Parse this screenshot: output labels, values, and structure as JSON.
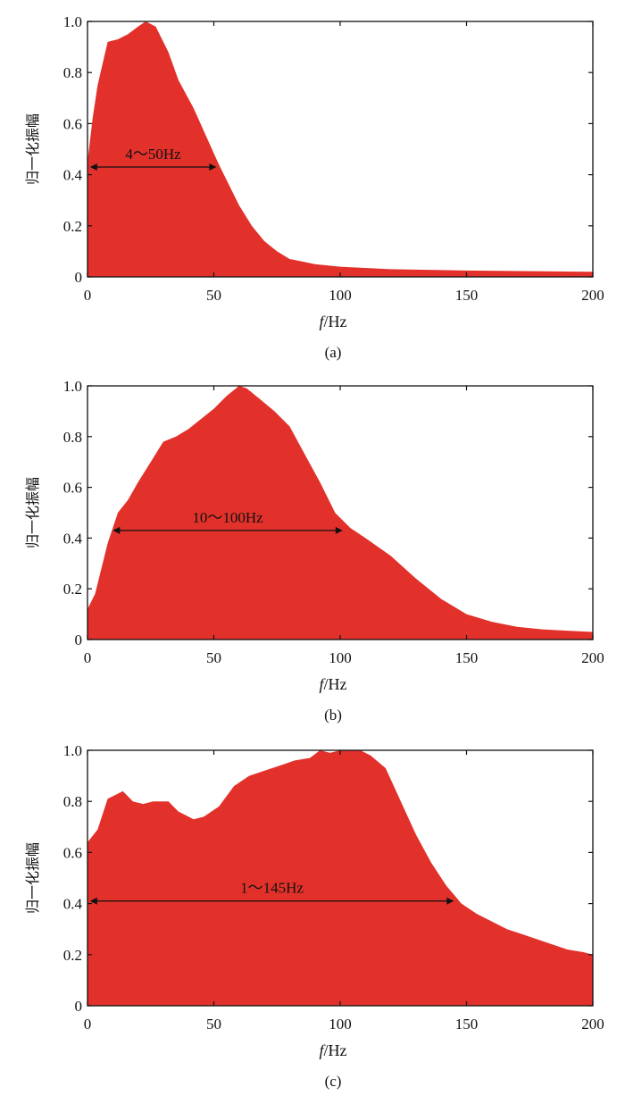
{
  "colors": {
    "fill": "#e2312b",
    "axis": "#111111"
  },
  "chart_data": [
    {
      "type": "area",
      "caption": "(a)",
      "xlabel_italic": "f",
      "xlabel_unit": "/Hz",
      "ylabel": "归一化振幅",
      "xlim": [
        0,
        200
      ],
      "ylim": [
        0,
        1.0
      ],
      "xticks": [
        0,
        50,
        100,
        150,
        200
      ],
      "xtick_labels": [
        "0",
        "50",
        "100",
        "150",
        "200"
      ],
      "yticks": [
        0,
        0.2,
        0.4,
        0.6,
        0.8,
        1.0
      ],
      "ytick_labels": [
        "0",
        "0.2",
        "0.4",
        "0.6",
        "0.8",
        "1.0"
      ],
      "x": [
        0,
        2,
        4,
        8,
        12,
        16,
        20,
        23,
        25,
        27,
        32,
        36,
        42,
        47,
        52,
        56,
        60,
        65,
        70,
        75,
        80,
        85,
        90,
        100,
        110,
        120,
        150,
        200
      ],
      "y": [
        0.45,
        0.62,
        0.75,
        0.92,
        0.93,
        0.95,
        0.98,
        1.0,
        0.99,
        0.98,
        0.88,
        0.77,
        0.66,
        0.55,
        0.44,
        0.36,
        0.28,
        0.2,
        0.14,
        0.1,
        0.07,
        0.06,
        0.05,
        0.04,
        0.035,
        0.03,
        0.025,
        0.02
      ],
      "annotation": {
        "text": "4～50Hz",
        "x_start": 1,
        "x_end": 51,
        "y": 0.43
      }
    },
    {
      "type": "area",
      "caption": "(b)",
      "xlabel_italic": "f",
      "xlabel_unit": "/Hz",
      "ylabel": "归一化振幅",
      "xlim": [
        0,
        200
      ],
      "ylim": [
        0,
        1.0
      ],
      "xticks": [
        0,
        50,
        100,
        150,
        200
      ],
      "xtick_labels": [
        "0",
        "50",
        "100",
        "150",
        "200"
      ],
      "yticks": [
        0,
        0.2,
        0.4,
        0.6,
        0.8,
        1.0
      ],
      "ytick_labels": [
        "0",
        "0.2",
        "0.4",
        "0.6",
        "0.8",
        "1.0"
      ],
      "x": [
        0,
        3,
        8,
        12,
        16,
        20,
        25,
        30,
        35,
        40,
        45,
        50,
        55,
        60,
        63,
        68,
        74,
        80,
        86,
        92,
        98,
        104,
        110,
        120,
        130,
        140,
        150,
        160,
        170,
        180,
        190,
        200
      ],
      "y": [
        0.12,
        0.18,
        0.38,
        0.5,
        0.55,
        0.62,
        0.7,
        0.78,
        0.8,
        0.83,
        0.87,
        0.91,
        0.96,
        1.0,
        0.99,
        0.95,
        0.9,
        0.84,
        0.73,
        0.62,
        0.5,
        0.44,
        0.4,
        0.33,
        0.24,
        0.16,
        0.1,
        0.07,
        0.05,
        0.04,
        0.035,
        0.03
      ],
      "annotation": {
        "text": "10～100Hz",
        "x_start": 10,
        "x_end": 101,
        "y": 0.43
      }
    },
    {
      "type": "area",
      "caption": "(c)",
      "xlabel_italic": "f",
      "xlabel_unit": "/Hz",
      "ylabel": "归一化振幅",
      "xlim": [
        0,
        200
      ],
      "ylim": [
        0,
        1.0
      ],
      "xticks": [
        0,
        50,
        100,
        150,
        200
      ],
      "xtick_labels": [
        "0",
        "50",
        "100",
        "150",
        "200"
      ],
      "yticks": [
        0,
        0.2,
        0.4,
        0.6,
        0.8,
        1.0
      ],
      "ytick_labels": [
        "0",
        "0.2",
        "0.4",
        "0.6",
        "0.8",
        "1.0"
      ],
      "x": [
        0,
        4,
        8,
        14,
        18,
        22,
        26,
        32,
        36,
        42,
        46,
        52,
        58,
        64,
        70,
        76,
        82,
        88,
        92,
        96,
        100,
        104,
        108,
        112,
        118,
        124,
        130,
        136,
        142,
        148,
        154,
        160,
        166,
        172,
        178,
        184,
        190,
        196,
        200
      ],
      "y": [
        0.64,
        0.69,
        0.81,
        0.84,
        0.8,
        0.79,
        0.8,
        0.8,
        0.76,
        0.73,
        0.74,
        0.78,
        0.86,
        0.9,
        0.92,
        0.94,
        0.96,
        0.97,
        1.0,
        0.99,
        1.0,
        1.0,
        1.0,
        0.98,
        0.93,
        0.8,
        0.67,
        0.56,
        0.47,
        0.4,
        0.36,
        0.33,
        0.3,
        0.28,
        0.26,
        0.24,
        0.22,
        0.21,
        0.2
      ],
      "annotation": {
        "text": "1～145Hz",
        "x_start": 1,
        "x_end": 145,
        "y": 0.41
      }
    }
  ]
}
